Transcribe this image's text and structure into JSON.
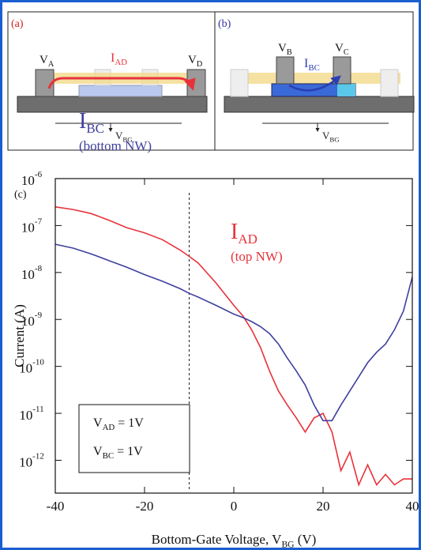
{
  "schematics": [
    {
      "label": "(a)",
      "left": {
        "main": "V",
        "sub": "A"
      },
      "current": {
        "main": "I",
        "sub": "AD"
      },
      "right": {
        "main": "V",
        "sub": "D"
      },
      "gate": {
        "main": "V",
        "sub": "BG"
      }
    },
    {
      "label": "(b)",
      "left": {
        "main": "V",
        "sub": "B"
      },
      "current": {
        "main": "I",
        "sub": "BC"
      },
      "right": {
        "main": "V",
        "sub": "C"
      },
      "gate": {
        "main": "V",
        "sub": "BG"
      }
    }
  ],
  "chart_data": {
    "type": "line",
    "panel_label": "(c)",
    "ylabel": "Current (A)",
    "xlabel": {
      "main": "Bottom-Gate Voltage, V",
      "sub": "BG",
      "rest": "  (V)"
    },
    "yscale": "log",
    "x": [
      -40,
      -36,
      -32,
      -28,
      -24,
      -20,
      -16,
      -12,
      -10,
      -8,
      -4,
      0,
      2,
      4,
      6,
      8,
      10,
      12,
      14,
      16,
      18,
      20,
      22,
      24,
      26,
      28,
      30,
      32,
      34,
      36,
      38,
      40
    ],
    "series": [
      {
        "name": {
          "main": "I",
          "sub": "AD",
          "note": "(top NW)"
        },
        "color": "#e8323a",
        "values": [
          2.5e-07,
          2.2e-07,
          1.8e-07,
          1.3e-07,
          9e-08,
          7e-08,
          5e-08,
          3e-08,
          2.2e-08,
          1.6e-08,
          6e-09,
          2e-09,
          1.2e-09,
          6e-10,
          2.5e-10,
          8e-11,
          3e-11,
          1.5e-11,
          8e-12,
          4e-12,
          8e-12,
          1e-11,
          4e-12,
          6e-13,
          1.5e-12,
          3e-13,
          8e-13,
          3e-13,
          5e-13,
          3e-13,
          4e-13,
          4e-13
        ]
      },
      {
        "name": {
          "main": "I",
          "sub": "BC",
          "note": "(bottom NW)"
        },
        "color": "#3f3fa0",
        "values": [
          4e-08,
          3.3e-08,
          2.5e-08,
          1.8e-08,
          1.3e-08,
          9e-09,
          6.5e-09,
          4.5e-09,
          3.6e-09,
          3e-09,
          2e-09,
          1.3e-09,
          1.1e-09,
          9e-10,
          7e-10,
          5e-10,
          3e-10,
          1.5e-10,
          8e-11,
          4e-11,
          1.5e-11,
          7e-12,
          7e-12,
          1.5e-11,
          3e-11,
          6e-11,
          1.2e-10,
          2e-10,
          3e-10,
          6e-10,
          1.5e-09,
          8e-09
        ]
      }
    ],
    "xlim": [
      -40,
      40
    ],
    "xticks": [
      -40,
      -20,
      0,
      20,
      40
    ],
    "ylim": [
      2e-13,
      1e-06
    ],
    "yticks": [
      {
        "value": 1e-06,
        "label": "10",
        "exponent": "-6"
      },
      {
        "value": 1e-07,
        "label": "10",
        "exponent": "-7"
      },
      {
        "value": 1e-08,
        "label": "10",
        "exponent": "-8"
      },
      {
        "value": 1e-09,
        "label": "10",
        "exponent": "-9"
      },
      {
        "value": 1e-10,
        "label": "10",
        "exponent": "-10"
      },
      {
        "value": 1e-11,
        "label": "10",
        "exponent": "-11"
      },
      {
        "value": 1e-12,
        "label": "10",
        "exponent": "-12"
      }
    ],
    "vline": -10,
    "conditions": [
      {
        "main": "V",
        "sub": "AD",
        "rest": " = 1V"
      },
      {
        "main": "V",
        "sub": "BC",
        "rest": " = 1V"
      }
    ]
  }
}
